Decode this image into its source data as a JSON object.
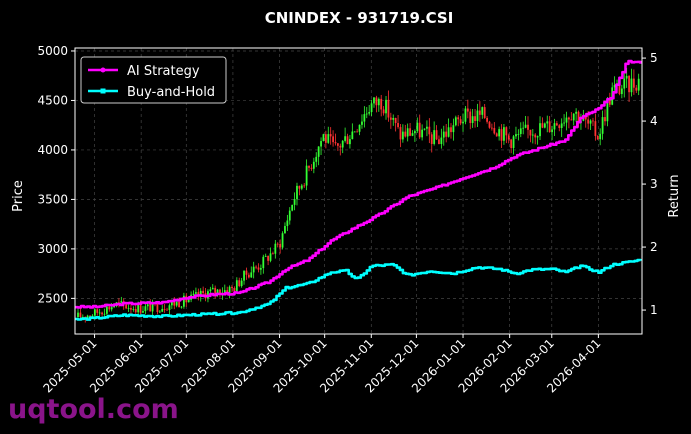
{
  "watermark": "uqtool.com",
  "chart_data": {
    "type": "candlestick+line",
    "title": "CNINDEX - 931719.CSI",
    "xlabel": "",
    "ylabel": "Price",
    "ylabel_right": "Return",
    "ylim": [
      2140,
      5030
    ],
    "ylim_right": [
      0.62,
      5.16
    ],
    "yticks": [
      2500,
      3000,
      3500,
      4000,
      4500,
      5000
    ],
    "yticks_right": [
      1,
      2,
      3,
      4,
      5
    ],
    "xlim": [
      "2025-04-18",
      "2026-04-30"
    ],
    "xticks": [
      "2025-05-01",
      "2025-06-01",
      "2025-07-01",
      "2025-08-01",
      "2025-09-01",
      "2025-10-01",
      "2025-11-01",
      "2025-12-01",
      "2026-01-01",
      "2026-02-01",
      "2026-03-01",
      "2026-04-01"
    ],
    "grid": true,
    "legend_position": "top-left",
    "colors": {
      "up_candle": "#33ff33",
      "down_candle": "#ff3333",
      "ai_strategy": "#ff00ff",
      "buy_and_hold": "#00ffff",
      "grid": "#444444"
    },
    "price_path": [
      {
        "date": "2025-04-18",
        "price": 2310
      },
      {
        "date": "2025-05-01",
        "price": 2350
      },
      {
        "date": "2025-05-15",
        "price": 2440
      },
      {
        "date": "2025-06-01",
        "price": 2400
      },
      {
        "date": "2025-06-15",
        "price": 2420
      },
      {
        "date": "2025-07-01",
        "price": 2480
      },
      {
        "date": "2025-07-15",
        "price": 2560
      },
      {
        "date": "2025-08-01",
        "price": 2600
      },
      {
        "date": "2025-08-10",
        "price": 2750
      },
      {
        "date": "2025-08-20",
        "price": 2850
      },
      {
        "date": "2025-09-01",
        "price": 3050
      },
      {
        "date": "2025-09-10",
        "price": 3500
      },
      {
        "date": "2025-09-20",
        "price": 3800
      },
      {
        "date": "2025-09-30",
        "price": 4150
      },
      {
        "date": "2025-10-08",
        "price": 4000
      },
      {
        "date": "2025-10-20",
        "price": 4200
      },
      {
        "date": "2025-10-31",
        "price": 4450
      },
      {
        "date": "2025-11-08",
        "price": 4500
      },
      {
        "date": "2025-11-20",
        "price": 4150
      },
      {
        "date": "2025-12-01",
        "price": 4200
      },
      {
        "date": "2025-12-15",
        "price": 4100
      },
      {
        "date": "2026-01-01",
        "price": 4330
      },
      {
        "date": "2026-01-15",
        "price": 4350
      },
      {
        "date": "2026-02-01",
        "price": 4100
      },
      {
        "date": "2026-02-15",
        "price": 4200
      },
      {
        "date": "2026-03-01",
        "price": 4250
      },
      {
        "date": "2026-03-15",
        "price": 4400
      },
      {
        "date": "2026-04-01",
        "price": 4150
      },
      {
        "date": "2026-04-10",
        "price": 4600
      },
      {
        "date": "2026-04-20",
        "price": 4650
      },
      {
        "date": "2026-04-30",
        "price": 4720
      }
    ],
    "series": [
      {
        "name": "AI Strategy",
        "points": [
          {
            "date": "2025-04-18",
            "value": 1.05
          },
          {
            "date": "2025-05-01",
            "value": 1.05
          },
          {
            "date": "2025-05-20",
            "value": 1.1
          },
          {
            "date": "2025-06-15",
            "value": 1.12
          },
          {
            "date": "2025-07-01",
            "value": 1.2
          },
          {
            "date": "2025-07-20",
            "value": 1.25
          },
          {
            "date": "2025-08-05",
            "value": 1.27
          },
          {
            "date": "2025-08-25",
            "value": 1.45
          },
          {
            "date": "2025-09-05",
            "value": 1.65
          },
          {
            "date": "2025-09-20",
            "value": 1.8
          },
          {
            "date": "2025-10-05",
            "value": 2.1
          },
          {
            "date": "2025-10-20",
            "value": 2.3
          },
          {
            "date": "2025-11-05",
            "value": 2.5
          },
          {
            "date": "2025-11-25",
            "value": 2.8
          },
          {
            "date": "2025-12-15",
            "value": 2.95
          },
          {
            "date": "2026-01-01",
            "value": 3.1
          },
          {
            "date": "2026-01-20",
            "value": 3.25
          },
          {
            "date": "2026-02-05",
            "value": 3.45
          },
          {
            "date": "2026-02-25",
            "value": 3.6
          },
          {
            "date": "2026-03-10",
            "value": 3.7
          },
          {
            "date": "2026-03-20",
            "value": 4.05
          },
          {
            "date": "2026-04-01",
            "value": 4.2
          },
          {
            "date": "2026-04-10",
            "value": 4.4
          },
          {
            "date": "2026-04-20",
            "value": 4.95
          },
          {
            "date": "2026-04-30",
            "value": 4.92
          }
        ]
      },
      {
        "name": "Buy-and-Hold",
        "points": [
          {
            "date": "2025-04-18",
            "value": 0.85
          },
          {
            "date": "2025-05-01",
            "value": 0.87
          },
          {
            "date": "2025-05-20",
            "value": 0.92
          },
          {
            "date": "2025-06-15",
            "value": 0.9
          },
          {
            "date": "2025-07-01",
            "value": 0.92
          },
          {
            "date": "2025-07-20",
            "value": 0.94
          },
          {
            "date": "2025-08-05",
            "value": 0.96
          },
          {
            "date": "2025-08-25",
            "value": 1.1
          },
          {
            "date": "2025-09-05",
            "value": 1.35
          },
          {
            "date": "2025-09-20",
            "value": 1.42
          },
          {
            "date": "2025-10-05",
            "value": 1.6
          },
          {
            "date": "2025-10-15",
            "value": 1.62
          },
          {
            "date": "2025-10-22",
            "value": 1.48
          },
          {
            "date": "2025-11-01",
            "value": 1.7
          },
          {
            "date": "2025-11-15",
            "value": 1.72
          },
          {
            "date": "2025-11-25",
            "value": 1.55
          },
          {
            "date": "2025-12-10",
            "value": 1.62
          },
          {
            "date": "2025-12-25",
            "value": 1.58
          },
          {
            "date": "2026-01-10",
            "value": 1.68
          },
          {
            "date": "2026-01-25",
            "value": 1.65
          },
          {
            "date": "2026-02-05",
            "value": 1.58
          },
          {
            "date": "2026-02-15",
            "value": 1.64
          },
          {
            "date": "2026-03-01",
            "value": 1.65
          },
          {
            "date": "2026-03-10",
            "value": 1.6
          },
          {
            "date": "2026-03-20",
            "value": 1.7
          },
          {
            "date": "2026-04-01",
            "value": 1.6
          },
          {
            "date": "2026-04-10",
            "value": 1.72
          },
          {
            "date": "2026-04-20",
            "value": 1.76
          },
          {
            "date": "2026-04-30",
            "value": 1.8
          }
        ]
      }
    ]
  }
}
